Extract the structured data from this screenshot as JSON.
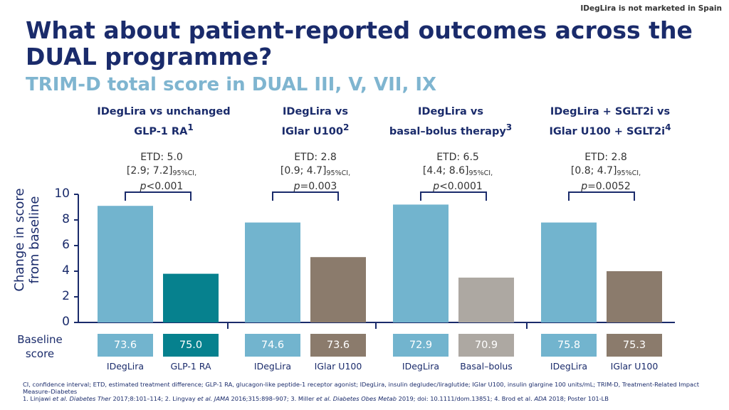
{
  "notice": "IDegLira is not marketed in Spain",
  "title": "What about patient-reported outcomes across the DUAL programme?",
  "subtitle": "TRIM-D total score in DUAL III, V, VII, IX",
  "colors": {
    "navy": "#1a2b6b",
    "light_blue": "#72b4ce",
    "teal": "#06818e",
    "brown": "#8b7b6c",
    "grey": "#ada8a2"
  },
  "baseline_label": "Baseline score",
  "footer": {
    "line1": "CI, confidence interval; ETD, estimated treatment difference; GLP-1 RA, glucagon-like peptide-1 receptor agonist; IDegLira, insulin degludec/liraglutide; IGlar U100, insulin glargine 100 units/mL; TRIM-D, Treatment-Related Impact Measure–Diabetes",
    "ref1": "1. Linjawi ",
    "ref1_i": "et al. Diabetes Ther",
    "ref1_rest": " 2017;8:101–114; 2. Lingvay ",
    "ref2_i": "et al. JAMA",
    "ref2_rest": " 2016;315:898–907; 3. Miller ",
    "ref3_i": "et al. Diabetes Obes Metab",
    "ref3_rest": " 2019; doi: 10.1111/dom.13851; 4. Brod et al. ",
    "ref4_i": "ADA",
    "ref4_rest": " 2018; Poster 101-LB"
  },
  "chart_data": {
    "type": "bar",
    "title": "TRIM-D total score in DUAL III, V, VII, IX",
    "ylabel": "Change in score from baseline",
    "ylim": [
      0,
      10
    ],
    "yticks": [
      "0",
      "2",
      "4",
      "6",
      "8",
      "10"
    ],
    "groups": [
      {
        "title_l1": "IDegLira vs unchanged",
        "title_l2": "GLP-1 RA",
        "sup": "1",
        "etd": "ETD: 5.0",
        "ci": "[2.9; 7.2]",
        "ci_sub": "95%CI,",
        "p_pre": "p",
        "p_val": "<0.001",
        "bars": [
          {
            "name": "IDegLira",
            "value": 9.1,
            "baseline": "73.6",
            "color": "#72b4ce"
          },
          {
            "name": "GLP-1 RA",
            "value": 3.8,
            "baseline": "75.0",
            "color": "#06818e"
          }
        ]
      },
      {
        "title_l1": "IDegLira vs",
        "title_l2": "IGlar U100",
        "sup": "2",
        "etd": "ETD: 2.8",
        "ci": "[0.9; 4.7]",
        "ci_sub": "95%CI,",
        "p_pre": "p",
        "p_val": "=0.003",
        "bars": [
          {
            "name": "IDegLira",
            "value": 7.8,
            "baseline": "74.6",
            "color": "#72b4ce"
          },
          {
            "name": "IGlar U100",
            "value": 5.1,
            "baseline": "73.6",
            "color": "#8b7b6c"
          }
        ]
      },
      {
        "title_l1": "IDegLira vs",
        "title_l2": "basal–bolus therapy",
        "sup": "3",
        "etd": "ETD: 6.5",
        "ci": "[4.4; 8.6]",
        "ci_sub": "95%CI,",
        "p_pre": "p",
        "p_val": "<0.0001",
        "bars": [
          {
            "name": "IDegLira",
            "value": 9.2,
            "baseline": "72.9",
            "color": "#72b4ce"
          },
          {
            "name": "Basal–bolus",
            "value": 3.5,
            "baseline": "70.9",
            "color": "#ada8a2"
          }
        ]
      },
      {
        "title_l1": "IDegLira + SGLT2i vs",
        "title_l2": "IGlar U100 + SGLT2i",
        "sup": "4",
        "etd": "ETD: 2.8",
        "ci": "[0.8; 4.7]",
        "ci_sub": "95%CI,",
        "p_pre": "p",
        "p_val": "=0.0052",
        "bars": [
          {
            "name": "IDegLira",
            "value": 7.8,
            "baseline": "75.8",
            "color": "#72b4ce"
          },
          {
            "name": "IGlar U100",
            "value": 4.0,
            "baseline": "75.3",
            "color": "#8b7b6c"
          }
        ]
      }
    ]
  }
}
